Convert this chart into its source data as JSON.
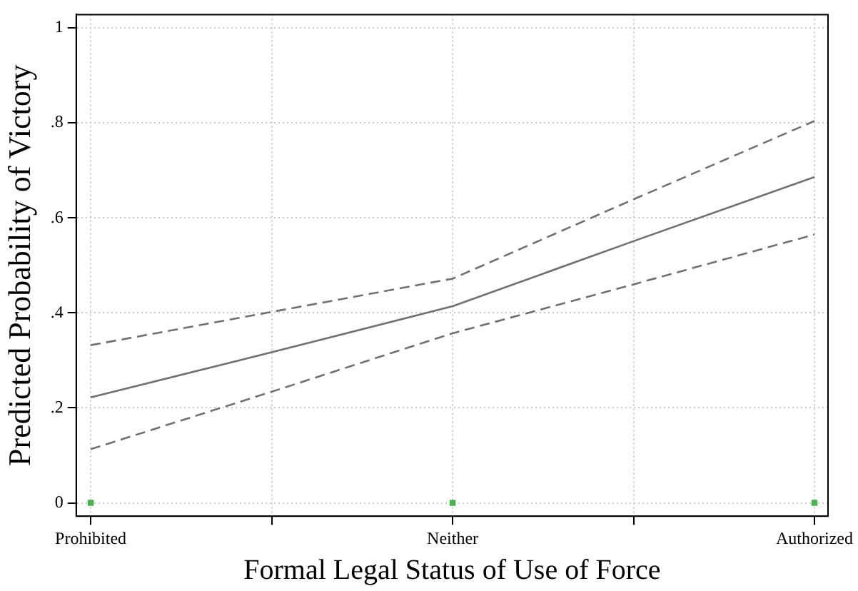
{
  "chart_data": {
    "type": "line",
    "xlabel": "Formal Legal Status of Use of Force",
    "ylabel": "Predicted Probability of Victory",
    "categories": [
      "Prohibited",
      null,
      "Neither",
      null,
      "Authorized"
    ],
    "series": [
      {
        "color": "#707070",
        "line_style": "dashed",
        "values": [
          0.332,
          0.402,
          0.472,
          0.639,
          0.804
        ]
      },
      {
        "color": "#707070",
        "line_style": "solid",
        "values": [
          0.222,
          0.317,
          0.414,
          0.551,
          0.686
        ]
      },
      {
        "color": "#707070",
        "line_style": "dashed",
        "values": [
          0.113,
          0.234,
          0.357,
          0.46,
          0.565
        ]
      },
      {
        "type": "scatter",
        "color": "#4caf50",
        "x": [
          "Prohibited",
          "Neither",
          "Authorized"
        ],
        "values": [
          0,
          0,
          0
        ]
      }
    ],
    "ylim": [
      -0.028,
      1.028
    ],
    "yticks": [
      0,
      {
        "value": 0.2,
        "label": ".2"
      },
      {
        "value": 0.4,
        "label": ".4"
      },
      {
        "value": 0.6,
        "label": ".6"
      },
      {
        "value": 0.8,
        "label": ".8"
      },
      1
    ],
    "grid": true,
    "legend": false
  }
}
